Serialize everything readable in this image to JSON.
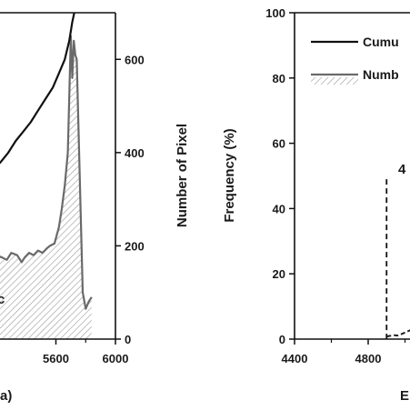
{
  "chart_data": [
    {
      "type": "line",
      "panel": "left",
      "x_tick_labels": [
        "5600",
        "6000"
      ],
      "y_right_tick_labels": [
        "0",
        "200",
        "400",
        "600"
      ],
      "y_right_label": "Number of Pixel",
      "y_right_lim": [
        0,
        700
      ],
      "x_lim_visible": [
        5200,
        6000
      ],
      "partial_xlabel": "a)",
      "series": [
        {
          "key": "cumulative",
          "style": "black-line",
          "x": [
            5200,
            5230,
            5280,
            5330,
            5380,
            5430,
            5480,
            5530,
            5580,
            5620,
            5660,
            5690,
            5710,
            5730,
            5760,
            5800,
            5840
          ],
          "y": [
            370,
            380,
            400,
            425,
            445,
            465,
            490,
            515,
            540,
            570,
            600,
            640,
            680,
            710,
            730,
            740,
            745
          ]
        },
        {
          "key": "pixel-count",
          "style": "gray-line-hatched",
          "x": [
            5200,
            5240,
            5270,
            5300,
            5340,
            5370,
            5390,
            5420,
            5450,
            5480,
            5510,
            5540,
            5560,
            5590,
            5620,
            5640,
            5660,
            5680,
            5690,
            5700,
            5710,
            5720,
            5730,
            5740,
            5760,
            5780,
            5800,
            5820,
            5840
          ],
          "y": [
            180,
            175,
            170,
            185,
            180,
            165,
            175,
            185,
            180,
            190,
            185,
            195,
            200,
            205,
            240,
            280,
            330,
            400,
            520,
            650,
            560,
            640,
            610,
            600,
            350,
            100,
            65,
            80,
            90
          ]
        }
      ],
      "partial_annotation": "c"
    },
    {
      "type": "line",
      "panel": "right",
      "x_tick_labels": [
        "4400",
        "4800"
      ],
      "y_tick_labels": [
        "0",
        "20",
        "40",
        "60",
        "80",
        "100"
      ],
      "ylabel": "Frequency (%)",
      "ylim": [
        0,
        100
      ],
      "x_lim_visible": [
        4400,
        5080
      ],
      "partial_xlabel": "E",
      "legend": {
        "placement": "top-right",
        "entries": [
          {
            "label": "Cumu",
            "style": "black-line"
          },
          {
            "label": "Numb",
            "style": "gray-line-hatched"
          }
        ]
      },
      "partial_annotation": "4",
      "annotation_line_x": 4900,
      "annotation_line_top": 49,
      "series": [
        {
          "key": "frequency-trace",
          "style": "black-line",
          "x": [
            4900,
            4920,
            4940,
            4960,
            4980,
            5000,
            5020,
            5040,
            5060
          ],
          "y": [
            0.8,
            1.0,
            1.2,
            1.1,
            1.5,
            2.0,
            2.5,
            3.0,
            3.5
          ]
        }
      ]
    }
  ]
}
